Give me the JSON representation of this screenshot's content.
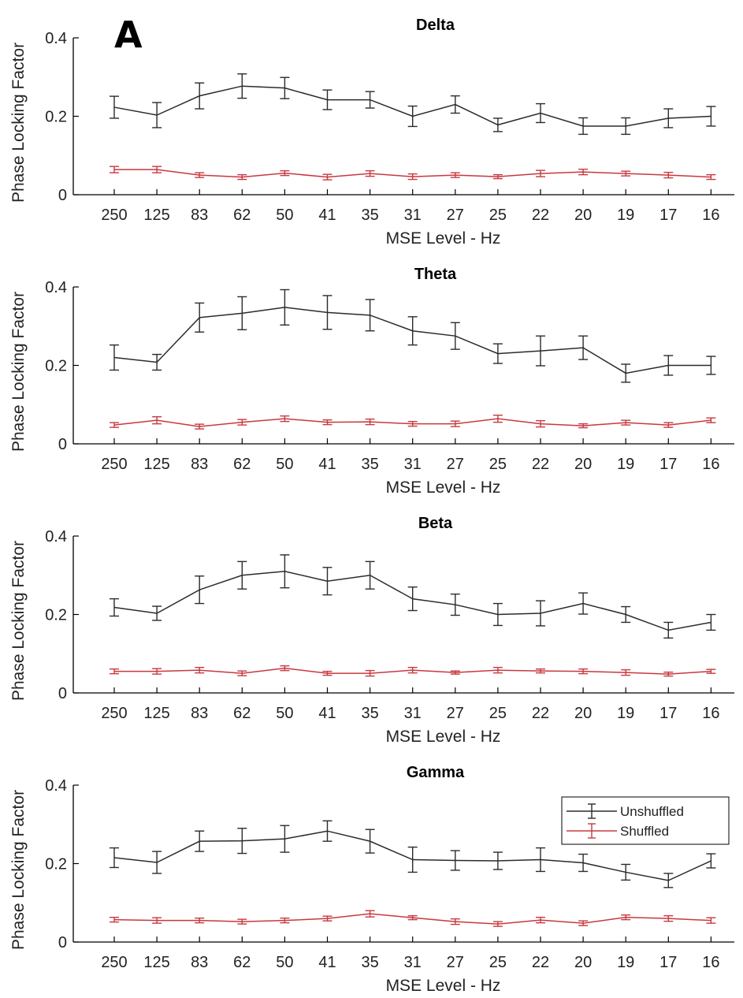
{
  "figure": {
    "panel_label": "A",
    "legend_entries": [
      "Unshuffled",
      "Shuffled"
    ]
  },
  "colors": {
    "unshuffled": "#2b2b2b",
    "shuffled": "#c8383f",
    "axis": "#000000"
  },
  "chart_data": [
    {
      "type": "line",
      "title": "Delta",
      "xlabel": "MSE Level - Hz",
      "ylabel": "Phase Locking Factor",
      "categories": [
        "250",
        "125",
        "83",
        "62",
        "50",
        "41",
        "35",
        "31",
        "27",
        "25",
        "22",
        "20",
        "19",
        "17",
        "16"
      ],
      "ylim": [
        0,
        0.4
      ],
      "yticks": [
        "0",
        "0.2",
        "0.4"
      ],
      "grid": false,
      "series": [
        {
          "name": "Unshuffled",
          "values": [
            0.223,
            0.203,
            0.252,
            0.277,
            0.272,
            0.242,
            0.242,
            0.2,
            0.23,
            0.178,
            0.208,
            0.175,
            0.175,
            0.195,
            0.2
          ],
          "errors": [
            0.028,
            0.032,
            0.033,
            0.031,
            0.027,
            0.025,
            0.021,
            0.026,
            0.022,
            0.017,
            0.024,
            0.021,
            0.021,
            0.024,
            0.025
          ]
        },
        {
          "name": "Shuffled",
          "values": [
            0.064,
            0.064,
            0.05,
            0.045,
            0.055,
            0.045,
            0.054,
            0.046,
            0.05,
            0.046,
            0.054,
            0.058,
            0.054,
            0.05,
            0.045
          ],
          "errors": [
            0.008,
            0.008,
            0.006,
            0.006,
            0.006,
            0.007,
            0.007,
            0.007,
            0.006,
            0.005,
            0.008,
            0.007,
            0.006,
            0.007,
            0.006
          ]
        }
      ]
    },
    {
      "type": "line",
      "title": "Theta",
      "xlabel": "MSE Level - Hz",
      "ylabel": "Phase Locking Factor",
      "categories": [
        "250",
        "125",
        "83",
        "62",
        "50",
        "41",
        "35",
        "31",
        "27",
        "25",
        "22",
        "20",
        "19",
        "17",
        "16"
      ],
      "ylim": [
        0,
        0.4
      ],
      "yticks": [
        "0",
        "0.2",
        "0.4"
      ],
      "grid": false,
      "series": [
        {
          "name": "Unshuffled",
          "values": [
            0.22,
            0.208,
            0.322,
            0.333,
            0.348,
            0.335,
            0.328,
            0.288,
            0.275,
            0.23,
            0.237,
            0.245,
            0.18,
            0.2,
            0.2
          ],
          "errors": [
            0.032,
            0.02,
            0.037,
            0.042,
            0.045,
            0.043,
            0.04,
            0.036,
            0.034,
            0.025,
            0.038,
            0.03,
            0.023,
            0.025,
            0.023
          ]
        },
        {
          "name": "Shuffled",
          "values": [
            0.048,
            0.06,
            0.044,
            0.055,
            0.064,
            0.055,
            0.056,
            0.051,
            0.051,
            0.064,
            0.051,
            0.046,
            0.054,
            0.048,
            0.06
          ],
          "errors": [
            0.006,
            0.009,
            0.006,
            0.007,
            0.007,
            0.006,
            0.007,
            0.006,
            0.007,
            0.009,
            0.008,
            0.005,
            0.006,
            0.006,
            0.006
          ]
        }
      ]
    },
    {
      "type": "line",
      "title": "Beta",
      "xlabel": "MSE Level - Hz",
      "ylabel": "Phase Locking Factor",
      "categories": [
        "250",
        "125",
        "83",
        "62",
        "50",
        "41",
        "35",
        "31",
        "27",
        "25",
        "22",
        "20",
        "19",
        "17",
        "16"
      ],
      "ylim": [
        0,
        0.4
      ],
      "yticks": [
        "0",
        "0.2",
        "0.4"
      ],
      "grid": false,
      "series": [
        {
          "name": "Unshuffled",
          "values": [
            0.218,
            0.203,
            0.263,
            0.3,
            0.31,
            0.285,
            0.3,
            0.24,
            0.225,
            0.2,
            0.203,
            0.228,
            0.2,
            0.16,
            0.18
          ],
          "errors": [
            0.022,
            0.018,
            0.035,
            0.035,
            0.042,
            0.035,
            0.035,
            0.03,
            0.027,
            0.028,
            0.032,
            0.027,
            0.02,
            0.02,
            0.02
          ]
        },
        {
          "name": "Shuffled",
          "values": [
            0.055,
            0.055,
            0.058,
            0.05,
            0.063,
            0.05,
            0.05,
            0.058,
            0.052,
            0.058,
            0.056,
            0.055,
            0.052,
            0.048,
            0.055
          ],
          "errors": [
            0.006,
            0.007,
            0.007,
            0.006,
            0.006,
            0.005,
            0.007,
            0.007,
            0.004,
            0.007,
            0.005,
            0.006,
            0.007,
            0.005,
            0.005
          ]
        }
      ]
    },
    {
      "type": "line",
      "title": "Gamma",
      "xlabel": "MSE Level - Hz",
      "ylabel": "Phase Locking Factor",
      "categories": [
        "250",
        "125",
        "83",
        "62",
        "50",
        "41",
        "35",
        "31",
        "27",
        "25",
        "22",
        "20",
        "19",
        "17",
        "16"
      ],
      "ylim": [
        0,
        0.4
      ],
      "yticks": [
        "0",
        "0.2",
        "0.4"
      ],
      "grid": false,
      "legend": "top-right",
      "series": [
        {
          "name": "Unshuffled",
          "values": [
            0.215,
            0.203,
            0.257,
            0.258,
            0.263,
            0.283,
            0.257,
            0.21,
            0.208,
            0.207,
            0.21,
            0.202,
            0.178,
            0.157,
            0.207
          ],
          "errors": [
            0.025,
            0.028,
            0.026,
            0.032,
            0.034,
            0.026,
            0.03,
            0.032,
            0.025,
            0.022,
            0.03,
            0.022,
            0.02,
            0.018,
            0.018
          ]
        },
        {
          "name": "Shuffled",
          "values": [
            0.057,
            0.055,
            0.055,
            0.052,
            0.055,
            0.06,
            0.072,
            0.062,
            0.052,
            0.046,
            0.056,
            0.048,
            0.063,
            0.06,
            0.055
          ],
          "errors": [
            0.006,
            0.007,
            0.006,
            0.006,
            0.006,
            0.006,
            0.008,
            0.005,
            0.007,
            0.006,
            0.007,
            0.006,
            0.006,
            0.007,
            0.007
          ]
        }
      ]
    }
  ]
}
